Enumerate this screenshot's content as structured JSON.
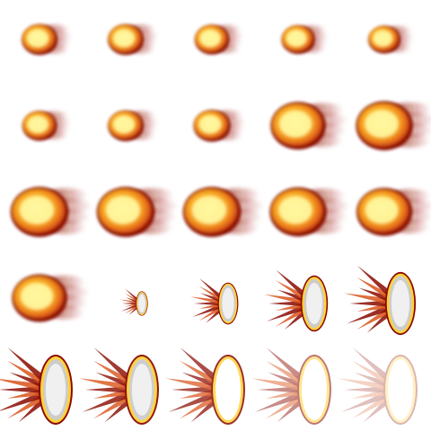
{
  "sprite_sheet": {
    "columns": 5,
    "rows": 5,
    "frame_count": 25,
    "colors": {
      "core": "#fff6a0",
      "inner": "#ffd23a",
      "mid": "#f08a1a",
      "outer": "#d9531a",
      "rim": "#8a0a00",
      "smoke": "#a01818",
      "debris_gray": "#cccccc"
    },
    "frames": [
      {
        "kind": "fireball",
        "scale": 0.62
      },
      {
        "kind": "fireball",
        "scale": 0.62
      },
      {
        "kind": "fireball",
        "scale": 0.6
      },
      {
        "kind": "fireball",
        "scale": 0.58
      },
      {
        "kind": "fireball",
        "scale": 0.56
      },
      {
        "kind": "fireball",
        "scale": 0.6
      },
      {
        "kind": "fireball",
        "scale": 0.62
      },
      {
        "kind": "fireball",
        "scale": 0.64
      },
      {
        "kind": "fireball",
        "scale": 0.95
      },
      {
        "kind": "fireball",
        "scale": 0.98
      },
      {
        "kind": "fireball",
        "scale": 1.0
      },
      {
        "kind": "fireball",
        "scale": 1.0
      },
      {
        "kind": "fireball",
        "scale": 1.0
      },
      {
        "kind": "fireball",
        "scale": 0.98
      },
      {
        "kind": "fireball",
        "scale": 0.96
      },
      {
        "kind": "fireball",
        "scale": 0.95
      },
      {
        "kind": "burst",
        "scale": 0.35,
        "opacity": 1.0
      },
      {
        "kind": "burst",
        "scale": 0.6,
        "opacity": 1.0
      },
      {
        "kind": "burst",
        "scale": 0.8,
        "opacity": 1.0
      },
      {
        "kind": "burst",
        "scale": 0.9,
        "opacity": 1.0
      },
      {
        "kind": "burst",
        "scale": 1.0,
        "opacity": 1.0
      },
      {
        "kind": "burst",
        "scale": 1.0,
        "opacity": 0.95
      },
      {
        "kind": "burst",
        "scale": 1.0,
        "opacity": 0.85
      },
      {
        "kind": "burst",
        "scale": 1.0,
        "opacity": 0.55
      },
      {
        "kind": "burst",
        "scale": 1.0,
        "opacity": 0.3
      }
    ]
  }
}
